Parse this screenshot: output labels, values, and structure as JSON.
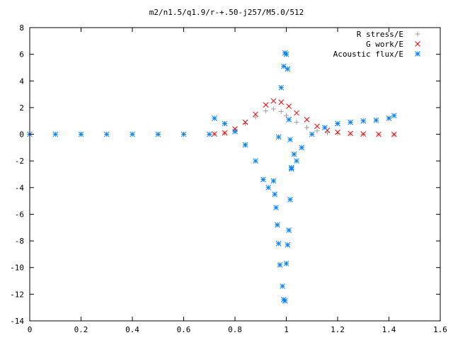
{
  "chart_data": {
    "type": "scatter",
    "title": "m2/n1.5/q1.9/r-+.50-j257/M5.0/512",
    "xlabel": "",
    "ylabel": "",
    "xlim": [
      0,
      1.6
    ],
    "ylim": [
      -14,
      8
    ],
    "x_ticks": [
      "0",
      "0.2",
      "0.4",
      "0.6",
      "0.8",
      "1",
      "1.2",
      "1.4",
      "1.6"
    ],
    "y_ticks": [
      "8",
      "6",
      "4",
      "2",
      "0",
      "-2",
      "-4",
      "-6",
      "-8",
      "-10",
      "-12",
      "-14"
    ],
    "grid": false,
    "legend_position": "top-right",
    "series": [
      {
        "name": "R stress/E",
        "marker": "plus",
        "color": "#a0a0a0",
        "points": [
          [
            0.72,
            0.02
          ],
          [
            0.76,
            0.08
          ],
          [
            0.8,
            0.35
          ],
          [
            0.84,
            0.8
          ],
          [
            0.88,
            1.3
          ],
          [
            0.92,
            1.75
          ],
          [
            0.95,
            1.9
          ],
          [
            0.98,
            1.7
          ],
          [
            1.0,
            1.4
          ],
          [
            1.04,
            0.9
          ],
          [
            1.08,
            0.5
          ],
          [
            1.12,
            0.25
          ],
          [
            1.16,
            0.12
          ],
          [
            1.2,
            0.06
          ],
          [
            1.25,
            0.02
          ],
          [
            1.3,
            0.0
          ],
          [
            1.36,
            -0.02
          ],
          [
            1.42,
            -0.03
          ]
        ]
      },
      {
        "name": "G work/E",
        "marker": "cross",
        "color": "#ff0000",
        "points": [
          [
            0.72,
            0.02
          ],
          [
            0.76,
            0.1
          ],
          [
            0.8,
            0.4
          ],
          [
            0.84,
            0.9
          ],
          [
            0.88,
            1.5
          ],
          [
            0.92,
            2.2
          ],
          [
            0.95,
            2.5
          ],
          [
            0.98,
            2.4
          ],
          [
            1.01,
            2.1
          ],
          [
            1.04,
            1.6
          ],
          [
            1.08,
            1.1
          ],
          [
            1.12,
            0.6
          ],
          [
            1.16,
            0.3
          ],
          [
            1.2,
            0.15
          ],
          [
            1.25,
            0.06
          ],
          [
            1.3,
            0.02
          ],
          [
            1.36,
            0.0
          ],
          [
            1.42,
            -0.01
          ]
        ]
      },
      {
        "name": "Acoustic flux/E",
        "marker": "star",
        "color": "#0080ff",
        "points": [
          [
            0.0,
            0.0
          ],
          [
            0.1,
            0.0
          ],
          [
            0.2,
            0.0
          ],
          [
            0.3,
            0.0
          ],
          [
            0.4,
            0.0
          ],
          [
            0.5,
            0.0
          ],
          [
            0.6,
            0.0
          ],
          [
            0.7,
            0.0
          ],
          [
            0.72,
            1.2
          ],
          [
            0.76,
            0.8
          ],
          [
            0.8,
            0.2
          ],
          [
            0.84,
            -0.8
          ],
          [
            0.88,
            -2.0
          ],
          [
            0.91,
            -3.4
          ],
          [
            0.93,
            -4.0
          ],
          [
            0.95,
            -3.5
          ],
          [
            0.955,
            -4.5
          ],
          [
            0.96,
            -5.5
          ],
          [
            0.965,
            -6.8
          ],
          [
            0.97,
            -8.2
          ],
          [
            0.975,
            -9.8
          ],
          [
            0.985,
            -11.4
          ],
          [
            0.99,
            -12.4
          ],
          [
            0.995,
            -12.5
          ],
          [
            1.0,
            -9.7
          ],
          [
            1.005,
            -8.3
          ],
          [
            1.01,
            -7.2
          ],
          [
            1.015,
            -4.9
          ],
          [
            1.02,
            -2.5
          ],
          [
            1.03,
            -1.5
          ],
          [
            1.04,
            -2.0
          ],
          [
            1.06,
            -1.0
          ],
          [
            1.1,
            0.0
          ],
          [
            1.15,
            0.5
          ],
          [
            1.2,
            0.8
          ],
          [
            1.25,
            0.9
          ],
          [
            1.3,
            1.0
          ],
          [
            1.35,
            1.05
          ],
          [
            1.4,
            1.2
          ],
          [
            1.42,
            1.4
          ],
          [
            0.97,
            -0.2
          ],
          [
            0.98,
            3.5
          ],
          [
            0.99,
            5.1
          ],
          [
            0.995,
            6.1
          ],
          [
            1.0,
            6.0
          ],
          [
            1.005,
            4.9
          ],
          [
            1.01,
            1.1
          ],
          [
            1.015,
            -0.4
          ],
          [
            1.02,
            -2.6
          ]
        ]
      }
    ]
  }
}
